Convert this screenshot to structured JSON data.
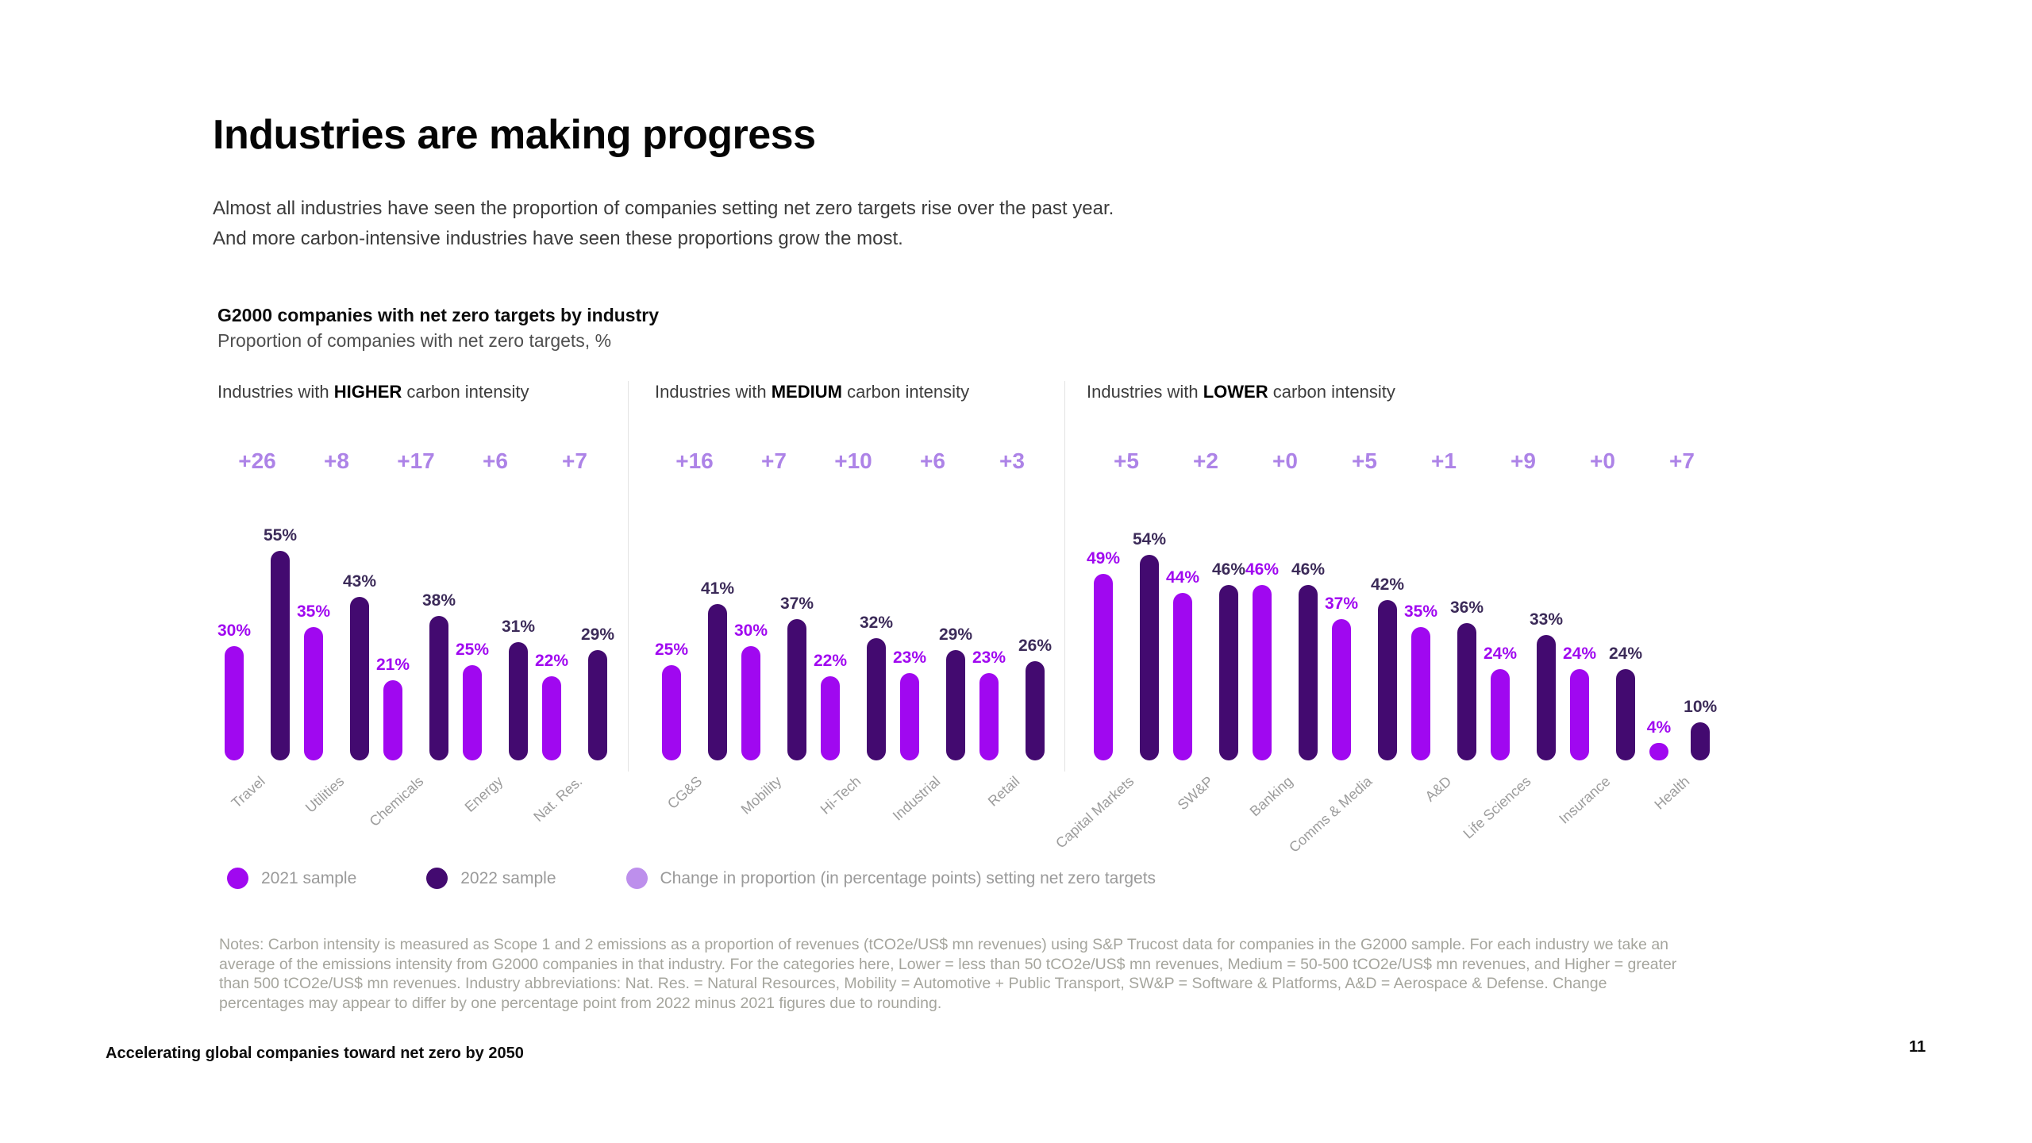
{
  "page": {
    "title": "Industries are making progress",
    "intro_line1": "Almost all industries have seen the proportion of companies setting net zero targets rise over the past year.",
    "intro_line2": "And more carbon-intensive industries have seen these proportions grow the most.",
    "footer_left": "Accelerating global companies toward net zero by 2050",
    "page_number": "11"
  },
  "chart": {
    "title": "G2000 companies with net zero targets by industry",
    "subtitle": "Proportion of companies with net zero targets, %"
  },
  "legend": {
    "items": [
      {
        "label": "2021 sample",
        "color": "#A008F0"
      },
      {
        "label": "2022 sample",
        "color": "#430A70"
      },
      {
        "label": "Change in proportion (in percentage points) setting net zero targets",
        "color": "#BD8FEC"
      }
    ]
  },
  "notes": {
    "text": "Notes: Carbon intensity is measured as Scope 1 and 2 emissions as a proportion of revenues (tCO2e/US$ mn revenues) using S&P Trucost data for companies in the G2000 sample. For each industry we take an average of the emissions intensity from G2000 companies in that industry. For the categories here, Lower = less than 50 tCO2e/US$ mn revenues, Medium = 50-500 tCO2e/US$ mn revenues, and Higher = greater than 500 tCO2e/US$ mn revenues. Industry abbreviations: Nat. Res. = Natural Resources, Mobility = Automotive + Public Transport, SW&P = Software & Platforms, A&D = Aerospace & Defense. Change percentages may appear to differ by one percentage point from 2022 minus 2021 figures due to rounding."
  },
  "colors": {
    "bar_2021": "#A008F0",
    "bar_2022": "#430A70",
    "change_label": "#AD83E7",
    "value_label_2022": "#3C2B59"
  },
  "chart_data": {
    "type": "bar",
    "unit": "%",
    "ylim": [
      0,
      60
    ],
    "grid": false,
    "series_names": [
      "2021 sample",
      "2022 sample"
    ],
    "sections": [
      {
        "label": {
          "prefix": "Industries with",
          "emphasis": "HIGHER",
          "suffix": "carbon intensity"
        },
        "groups": [
          {
            "category": "Travel",
            "v2021": 30,
            "v2022": 55,
            "change": "+26"
          },
          {
            "category": "Utilities",
            "v2021": 35,
            "v2022": 43,
            "change": "+8"
          },
          {
            "category": "Chemicals",
            "v2021": 21,
            "v2022": 38,
            "change": "+17"
          },
          {
            "category": "Energy",
            "v2021": 25,
            "v2022": 31,
            "change": "+6"
          },
          {
            "category": "Nat. Res.",
            "v2021": 22,
            "v2022": 29,
            "change": "+7"
          }
        ]
      },
      {
        "label": {
          "prefix": "Industries with",
          "emphasis": "MEDIUM",
          "suffix": "carbon intensity"
        },
        "groups": [
          {
            "category": "CG&S",
            "v2021": 25,
            "v2022": 41,
            "change": "+16"
          },
          {
            "category": "Mobility",
            "v2021": 30,
            "v2022": 37,
            "change": "+7"
          },
          {
            "category": "Hi-Tech",
            "v2021": 22,
            "v2022": 32,
            "change": "+10"
          },
          {
            "category": "Industrial",
            "v2021": 23,
            "v2022": 29,
            "change": "+6"
          },
          {
            "category": "Retail",
            "v2021": 23,
            "v2022": 26,
            "change": "+3"
          }
        ]
      },
      {
        "label": {
          "prefix": "Industries with",
          "emphasis": "LOWER",
          "suffix": "carbon intensity"
        },
        "groups": [
          {
            "category": "Capital Markets",
            "v2021": 49,
            "v2022": 54,
            "change": "+5"
          },
          {
            "category": "SW&P",
            "v2021": 44,
            "v2022": 46,
            "change": "+2"
          },
          {
            "category": "Banking",
            "v2021": 46,
            "v2022": 46,
            "change": "+0"
          },
          {
            "category": "Comms & Media",
            "v2021": 37,
            "v2022": 42,
            "change": "+5"
          },
          {
            "category": "A&D",
            "v2021": 35,
            "v2022": 36,
            "change": "+1"
          },
          {
            "category": "Life Sciences",
            "v2021": 24,
            "v2022": 33,
            "change": "+9"
          },
          {
            "category": "Insurance",
            "v2021": 24,
            "v2022": 24,
            "change": "+0"
          },
          {
            "category": "Health",
            "v2021": 4,
            "v2022": 10,
            "change": "+7"
          }
        ]
      }
    ]
  }
}
